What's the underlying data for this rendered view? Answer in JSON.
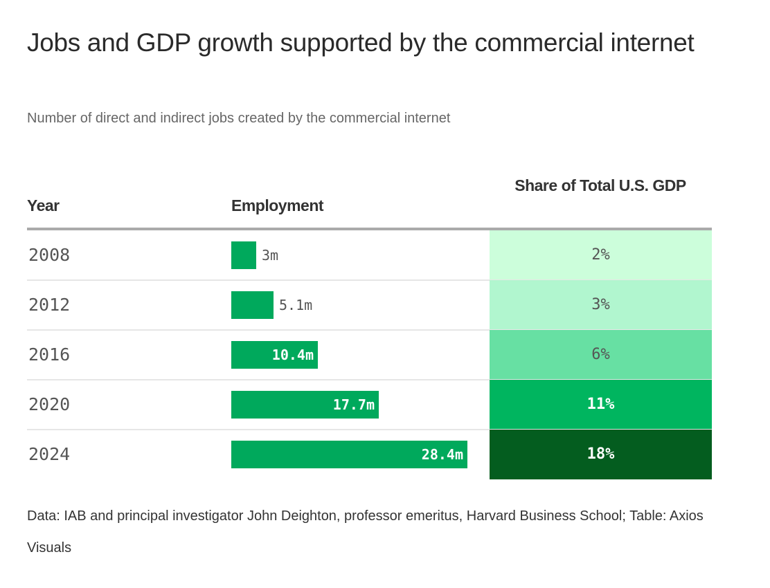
{
  "chart_data": {
    "type": "table",
    "title": "Jobs and GDP growth supported by the commercial internet",
    "subtitle": "Number of direct and indirect jobs created by the commercial internet",
    "columns": [
      "Year",
      "Employment",
      "Share of Total U.S. GDP"
    ],
    "rows": [
      {
        "year": "2008",
        "employment": 3,
        "employment_label": "3m",
        "gdp": 2,
        "gdp_label": "2%",
        "gdp_color": "#ccfedb",
        "gdp_text": "#555555"
      },
      {
        "year": "2012",
        "employment": 5.1,
        "employment_label": "5.1m",
        "gdp": 3,
        "gdp_label": "3%",
        "gdp_color": "#b1f6cf",
        "gdp_text": "#555555"
      },
      {
        "year": "2016",
        "employment": 10.4,
        "employment_label": "10.4m",
        "gdp": 6,
        "gdp_label": "6%",
        "gdp_color": "#67e0a3",
        "gdp_text": "#555555"
      },
      {
        "year": "2020",
        "employment": 17.7,
        "employment_label": "17.7m",
        "gdp": 11,
        "gdp_label": "11%",
        "gdp_color": "#00b55f",
        "gdp_text": "#ffffff"
      },
      {
        "year": "2024",
        "employment": 28.4,
        "employment_label": "28.4m",
        "gdp": 18,
        "gdp_label": "18%",
        "gdp_color": "#045d1f",
        "gdp_text": "#ffffff"
      }
    ],
    "bar_color": "#00a95c",
    "source": "Data: IAB and principal investigator John Deighton, professor emeritus, Harvard Business School; Table: Axios Visuals"
  }
}
